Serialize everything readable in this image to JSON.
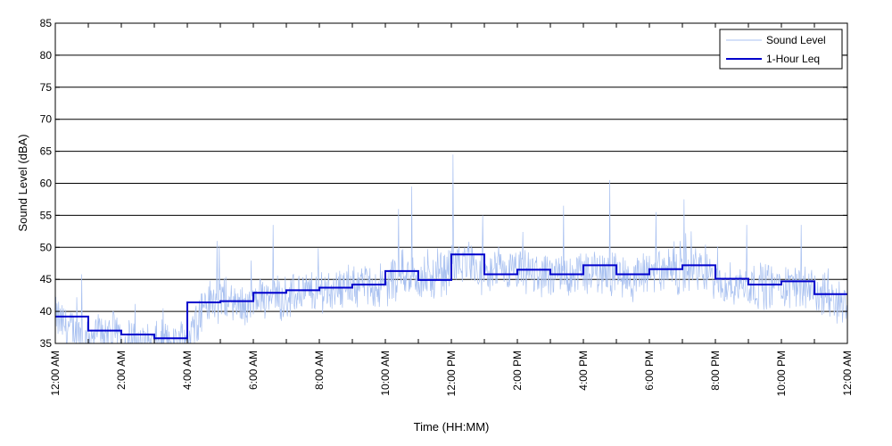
{
  "chart_data": {
    "type": "line",
    "title": "",
    "xlabel": "Time (HH:MM)",
    "ylabel": "Sound Level (dBA)",
    "ylim": [
      35,
      85
    ],
    "xlim_hours": [
      0,
      24
    ],
    "grid": "horizontal",
    "legend_position": "top-right",
    "yticks": [
      35,
      40,
      45,
      50,
      55,
      60,
      65,
      70,
      75,
      80,
      85
    ],
    "xticks": [
      {
        "hour": 0,
        "label": "12:00 AM"
      },
      {
        "hour": 2,
        "label": "2:00 AM"
      },
      {
        "hour": 4,
        "label": "4:00 AM"
      },
      {
        "hour": 6,
        "label": "6:00 AM"
      },
      {
        "hour": 8,
        "label": "8:00 AM"
      },
      {
        "hour": 10,
        "label": "10:00 AM"
      },
      {
        "hour": 12,
        "label": "12:00 PM"
      },
      {
        "hour": 14,
        "label": "2:00 PM"
      },
      {
        "hour": 16,
        "label": "4:00 PM"
      },
      {
        "hour": 18,
        "label": "6:00 PM"
      },
      {
        "hour": 20,
        "label": "8:00 PM"
      },
      {
        "hour": 22,
        "label": "10:00 PM"
      },
      {
        "hour": 24,
        "label": "12:00 AM"
      }
    ],
    "series": [
      {
        "name": "Sound Level",
        "color": "#a8c0f0",
        "note": "high-frequency measured sound level fluctuating around the hourly Leq",
        "x_hours": [
          0,
          0.5,
          1,
          1.5,
          2,
          2.5,
          3,
          3.5,
          4,
          4.5,
          5,
          5.5,
          6,
          6.5,
          7,
          7.5,
          8,
          8.5,
          9,
          9.5,
          10,
          10.5,
          11,
          11.5,
          12,
          12.5,
          13,
          13.5,
          14,
          14.5,
          15,
          15.5,
          16,
          16.5,
          17,
          17.5,
          18,
          18.5,
          19,
          19.5,
          20,
          20.5,
          21,
          21.5,
          22,
          22.5,
          23,
          23.5,
          24
        ],
        "values": [
          39,
          37,
          36,
          37,
          36,
          35,
          35,
          35,
          36,
          41,
          42,
          41,
          41,
          43,
          42,
          43,
          43,
          44,
          44,
          44,
          44,
          46,
          45,
          45,
          47,
          48,
          45,
          46,
          46,
          46,
          45,
          46,
          46,
          46,
          46,
          45,
          46,
          46,
          46,
          47,
          45,
          44,
          44,
          44,
          44,
          44,
          43,
          42,
          41
        ],
        "peaks": [
          {
            "hour": 0.8,
            "value": 45.8
          },
          {
            "hour": 4.9,
            "value": 51
          },
          {
            "hour": 6.6,
            "value": 53.5
          },
          {
            "hour": 10.4,
            "value": 56
          },
          {
            "hour": 10.8,
            "value": 59.5
          },
          {
            "hour": 12.05,
            "value": 64.5
          },
          {
            "hour": 12.95,
            "value": 55
          },
          {
            "hour": 15.4,
            "value": 56.5
          },
          {
            "hour": 16.8,
            "value": 60.5
          },
          {
            "hour": 18.2,
            "value": 55.5
          },
          {
            "hour": 19.05,
            "value": 57.5
          },
          {
            "hour": 20.95,
            "value": 53.5
          },
          {
            "hour": 22.6,
            "value": 53.5
          }
        ]
      },
      {
        "name": "1-Hour Leq",
        "color": "#0000cc",
        "hours": [
          0,
          1,
          2,
          3,
          4,
          5,
          6,
          7,
          8,
          9,
          10,
          11,
          12,
          13,
          14,
          15,
          16,
          17,
          18,
          19,
          20,
          21,
          22,
          23
        ],
        "values": [
          39.2,
          37.0,
          36.4,
          35.8,
          41.4,
          41.6,
          42.9,
          43.3,
          43.7,
          44.2,
          46.3,
          44.9,
          48.9,
          45.8,
          46.5,
          45.8,
          47.2,
          45.8,
          46.6,
          47.2,
          45.1,
          44.2,
          44.7,
          42.7
        ]
      }
    ]
  }
}
